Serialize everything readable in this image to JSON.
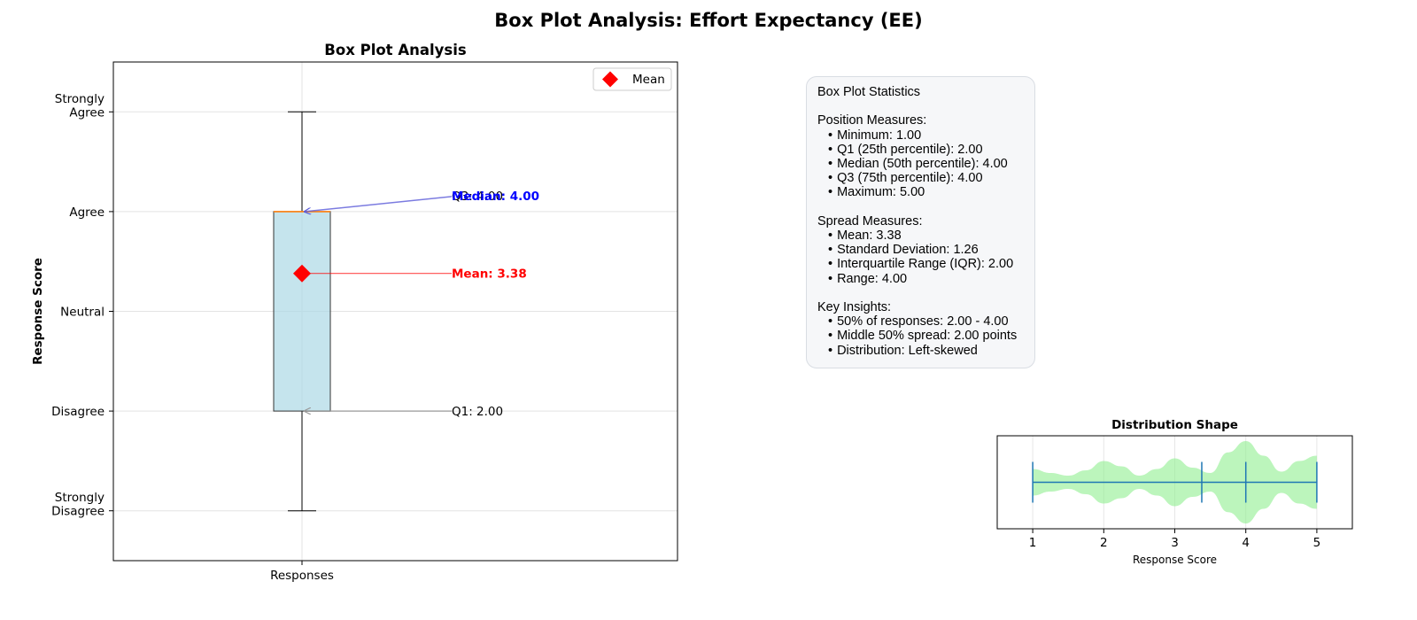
{
  "figure_title": "Box Plot Analysis: Effort Expectancy (EE)",
  "colors": {
    "box_fill": "#add8e6",
    "median_line": "#ff7f0e",
    "mean_marker": "#ff0000",
    "median_annotation": "#0000ff",
    "q1_arrow": "#999999",
    "violin_fill": "#90ee90",
    "violin_lines": "#1f77b4"
  },
  "chart_data": [
    {
      "type": "box",
      "title": "Box Plot Analysis",
      "ylabel": "Response Score",
      "xlabel": "",
      "x_tick_labels": [
        "Responses"
      ],
      "y_ticks": [
        1,
        2,
        3,
        4,
        5
      ],
      "y_tick_labels": [
        [
          "Strongly",
          "Disagree"
        ],
        [
          "Disagree"
        ],
        [
          "Neutral"
        ],
        [
          "Agree"
        ],
        [
          "Strongly",
          "Agree"
        ]
      ],
      "ylim": [
        0.5,
        5.5
      ],
      "grid": true,
      "legend": {
        "position": "top-right",
        "entries": [
          "Mean"
        ]
      },
      "box": {
        "min": 1.0,
        "q1": 2.0,
        "median": 4.0,
        "q3": 4.0,
        "max": 5.0,
        "mean": 3.38
      },
      "annotations": [
        {
          "text": "Q3: 4.00",
          "value": 4.0,
          "kind": "q3"
        },
        {
          "text": "Median: 4.00",
          "value": 4.0,
          "kind": "median"
        },
        {
          "text": "Mean: 3.38",
          "value": 3.38,
          "kind": "mean"
        },
        {
          "text": "Q1: 2.00",
          "value": 2.0,
          "kind": "q1"
        }
      ]
    },
    {
      "type": "violin",
      "title": "Distribution Shape",
      "xlabel": "Response Score",
      "x_ticks": [
        1,
        2,
        3,
        4,
        5
      ],
      "xlim": [
        0.5,
        5.5
      ],
      "grid": true,
      "markers": [
        1.0,
        3.38,
        4.0,
        5.0
      ],
      "density": [
        [
          1.0,
          0.2
        ],
        [
          1.25,
          0.14
        ],
        [
          1.5,
          0.1
        ],
        [
          1.75,
          0.18
        ],
        [
          2.0,
          0.32
        ],
        [
          2.25,
          0.24
        ],
        [
          2.5,
          0.1
        ],
        [
          2.75,
          0.2
        ],
        [
          3.0,
          0.36
        ],
        [
          3.25,
          0.22
        ],
        [
          3.5,
          0.14
        ],
        [
          3.75,
          0.45
        ],
        [
          4.0,
          0.62
        ],
        [
          4.25,
          0.4
        ],
        [
          4.5,
          0.16
        ],
        [
          4.75,
          0.32
        ],
        [
          5.0,
          0.4
        ]
      ]
    }
  ],
  "stats_panel": {
    "title": "Box Plot Statistics",
    "sections": [
      {
        "heading": "Position Measures:",
        "items": [
          "Minimum: 1.00",
          "Q1 (25th percentile): 2.00",
          "Median (50th percentile): 4.00",
          "Q3 (75th percentile): 4.00",
          "Maximum: 5.00"
        ]
      },
      {
        "heading": "Spread Measures:",
        "items": [
          "Mean: 3.38",
          "Standard Deviation: 1.26",
          "Interquartile Range (IQR): 2.00",
          "Range: 4.00"
        ]
      },
      {
        "heading": "Key Insights:",
        "items": [
          "50% of responses: 2.00 - 4.00",
          "Middle 50% spread: 2.00 points",
          "Distribution: Left-skewed"
        ]
      }
    ]
  }
}
